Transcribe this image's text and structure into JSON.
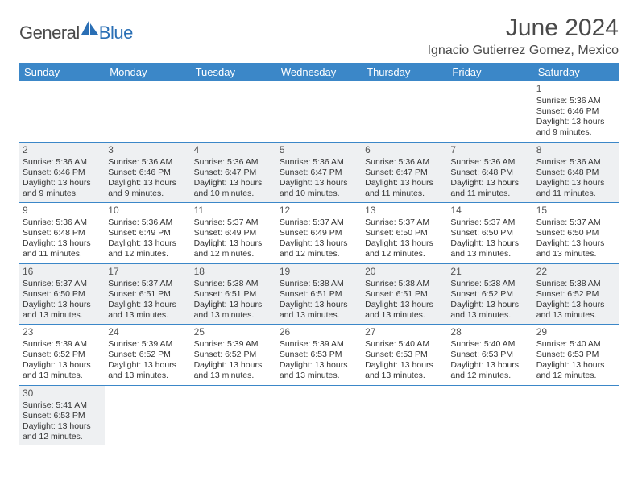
{
  "logo": {
    "text1": "General",
    "text2": "Blue"
  },
  "title": "June 2024",
  "location": "Ignacio Gutierrez Gomez, Mexico",
  "colors": {
    "header_bg": "#3b87c8",
    "header_text": "#ffffff",
    "shaded_bg": "#eef0f2",
    "border": "#3b87c8",
    "body_text": "#333333",
    "title_text": "#4a4a4a",
    "logo_blue": "#2a6fb5"
  },
  "dayNames": [
    "Sunday",
    "Monday",
    "Tuesday",
    "Wednesday",
    "Thursday",
    "Friday",
    "Saturday"
  ],
  "weeks": [
    [
      null,
      null,
      null,
      null,
      null,
      null,
      {
        "n": "1",
        "sr": "5:36 AM",
        "ss": "6:46 PM",
        "dl": "13 hours and 9 minutes."
      }
    ],
    [
      {
        "n": "2",
        "sr": "5:36 AM",
        "ss": "6:46 PM",
        "dl": "13 hours and 9 minutes.",
        "shaded": true
      },
      {
        "n": "3",
        "sr": "5:36 AM",
        "ss": "6:46 PM",
        "dl": "13 hours and 9 minutes.",
        "shaded": true
      },
      {
        "n": "4",
        "sr": "5:36 AM",
        "ss": "6:47 PM",
        "dl": "13 hours and 10 minutes.",
        "shaded": true
      },
      {
        "n": "5",
        "sr": "5:36 AM",
        "ss": "6:47 PM",
        "dl": "13 hours and 10 minutes.",
        "shaded": true
      },
      {
        "n": "6",
        "sr": "5:36 AM",
        "ss": "6:47 PM",
        "dl": "13 hours and 11 minutes.",
        "shaded": true
      },
      {
        "n": "7",
        "sr": "5:36 AM",
        "ss": "6:48 PM",
        "dl": "13 hours and 11 minutes.",
        "shaded": true
      },
      {
        "n": "8",
        "sr": "5:36 AM",
        "ss": "6:48 PM",
        "dl": "13 hours and 11 minutes.",
        "shaded": true
      }
    ],
    [
      {
        "n": "9",
        "sr": "5:36 AM",
        "ss": "6:48 PM",
        "dl": "13 hours and 11 minutes."
      },
      {
        "n": "10",
        "sr": "5:36 AM",
        "ss": "6:49 PM",
        "dl": "13 hours and 12 minutes."
      },
      {
        "n": "11",
        "sr": "5:37 AM",
        "ss": "6:49 PM",
        "dl": "13 hours and 12 minutes."
      },
      {
        "n": "12",
        "sr": "5:37 AM",
        "ss": "6:49 PM",
        "dl": "13 hours and 12 minutes."
      },
      {
        "n": "13",
        "sr": "5:37 AM",
        "ss": "6:50 PM",
        "dl": "13 hours and 12 minutes."
      },
      {
        "n": "14",
        "sr": "5:37 AM",
        "ss": "6:50 PM",
        "dl": "13 hours and 13 minutes."
      },
      {
        "n": "15",
        "sr": "5:37 AM",
        "ss": "6:50 PM",
        "dl": "13 hours and 13 minutes."
      }
    ],
    [
      {
        "n": "16",
        "sr": "5:37 AM",
        "ss": "6:50 PM",
        "dl": "13 hours and 13 minutes.",
        "shaded": true
      },
      {
        "n": "17",
        "sr": "5:37 AM",
        "ss": "6:51 PM",
        "dl": "13 hours and 13 minutes.",
        "shaded": true
      },
      {
        "n": "18",
        "sr": "5:38 AM",
        "ss": "6:51 PM",
        "dl": "13 hours and 13 minutes.",
        "shaded": true
      },
      {
        "n": "19",
        "sr": "5:38 AM",
        "ss": "6:51 PM",
        "dl": "13 hours and 13 minutes.",
        "shaded": true
      },
      {
        "n": "20",
        "sr": "5:38 AM",
        "ss": "6:51 PM",
        "dl": "13 hours and 13 minutes.",
        "shaded": true
      },
      {
        "n": "21",
        "sr": "5:38 AM",
        "ss": "6:52 PM",
        "dl": "13 hours and 13 minutes.",
        "shaded": true
      },
      {
        "n": "22",
        "sr": "5:38 AM",
        "ss": "6:52 PM",
        "dl": "13 hours and 13 minutes.",
        "shaded": true
      }
    ],
    [
      {
        "n": "23",
        "sr": "5:39 AM",
        "ss": "6:52 PM",
        "dl": "13 hours and 13 minutes."
      },
      {
        "n": "24",
        "sr": "5:39 AM",
        "ss": "6:52 PM",
        "dl": "13 hours and 13 minutes."
      },
      {
        "n": "25",
        "sr": "5:39 AM",
        "ss": "6:52 PM",
        "dl": "13 hours and 13 minutes."
      },
      {
        "n": "26",
        "sr": "5:39 AM",
        "ss": "6:53 PM",
        "dl": "13 hours and 13 minutes."
      },
      {
        "n": "27",
        "sr": "5:40 AM",
        "ss": "6:53 PM",
        "dl": "13 hours and 13 minutes."
      },
      {
        "n": "28",
        "sr": "5:40 AM",
        "ss": "6:53 PM",
        "dl": "13 hours and 12 minutes."
      },
      {
        "n": "29",
        "sr": "5:40 AM",
        "ss": "6:53 PM",
        "dl": "13 hours and 12 minutes."
      }
    ],
    [
      {
        "n": "30",
        "sr": "5:41 AM",
        "ss": "6:53 PM",
        "dl": "13 hours and 12 minutes.",
        "shaded": true
      },
      null,
      null,
      null,
      null,
      null,
      null
    ]
  ],
  "labels": {
    "sunrise": "Sunrise:",
    "sunset": "Sunset:",
    "daylight": "Daylight:"
  }
}
